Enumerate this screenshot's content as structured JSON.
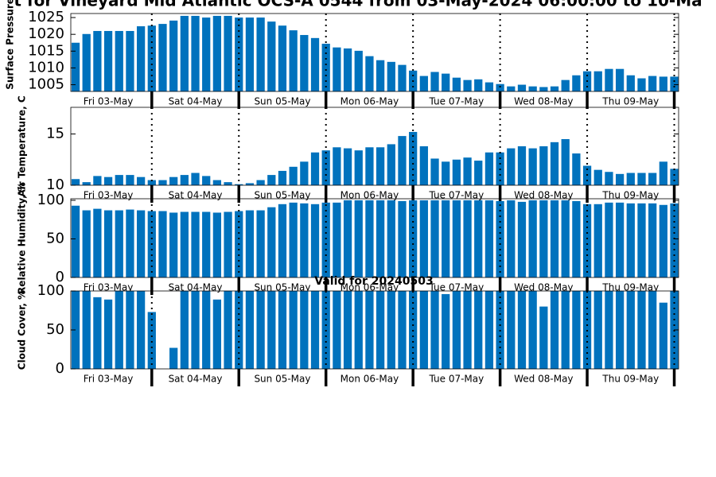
{
  "chart_data": [
    {
      "type": "bar",
      "title": "t for Vineyard Mid Atlantic OCS-A 0544 from 03-May-2024 06:00:00 to 10-Ma",
      "ylabel": "Surface Pressure, mb",
      "color": "#0072bd",
      "x": [
        3.125,
        3.25,
        3.375,
        3.5,
        3.625,
        3.75,
        3.875,
        4,
        4.125,
        4.25,
        4.375,
        4.5,
        4.625,
        4.75,
        4.875,
        5,
        5.125,
        5.25,
        5.375,
        5.5,
        5.625,
        5.75,
        5.875,
        6,
        6.125,
        6.25,
        6.375,
        6.5,
        6.625,
        6.75,
        6.875,
        7,
        7.125,
        7.25,
        7.375,
        7.5,
        7.625,
        7.75,
        7.875,
        8,
        8.125,
        8.25,
        8.375,
        8.5,
        8.625,
        8.75,
        8.875,
        9,
        9.125,
        9.25,
        9.375,
        9.5,
        9.625,
        9.75,
        9.875,
        10
      ],
      "values": [
        1017.5,
        1020.1,
        1021,
        1021,
        1021,
        1021,
        1022.4,
        1022.6,
        1023.1,
        1024.1,
        1025.5,
        1025.5,
        1025,
        1025.5,
        1025.5,
        1025,
        1025,
        1025,
        1023.8,
        1022.6,
        1021.2,
        1019.8,
        1018.9,
        1017.2,
        1016.1,
        1015.8,
        1015.1,
        1013.5,
        1012.3,
        1011.8,
        1010.9,
        1009.2,
        1007.6,
        1008.8,
        1008.3,
        1007.1,
        1006.4,
        1006.6,
        1005.7,
        1005.2,
        1004.5,
        1005,
        1004.5,
        1004.3,
        1004.5,
        1006.4,
        1007.8,
        1009,
        1009,
        1009.7,
        1009.7,
        1007.8,
        1006.9,
        1007.6,
        1007.4,
        1007.4
      ],
      "xlim": [
        3.07,
        10.05
      ],
      "ylim": [
        1003,
        1026.2
      ],
      "yticks": [
        1005,
        1010,
        1015,
        1020,
        1025
      ],
      "xticks": [
        {
          "value": 3.5,
          "label": "Fri 03-May"
        },
        {
          "value": 4.5,
          "label": "Sat 04-May"
        },
        {
          "value": 5.5,
          "label": "Sun 05-May"
        },
        {
          "value": 6.5,
          "label": "Mon 06-May"
        },
        {
          "value": 7.5,
          "label": "Tue 07-May"
        },
        {
          "value": 8.5,
          "label": "Wed 08-May"
        },
        {
          "value": 9.5,
          "label": "Thu 09-May"
        }
      ],
      "day_boundaries": [
        4,
        5,
        6,
        7,
        8,
        9,
        10
      ]
    },
    {
      "type": "bar",
      "ylabel": "Air Temperature, C",
      "color": "#0072bd",
      "x": [
        3.125,
        3.25,
        3.375,
        3.5,
        3.625,
        3.75,
        3.875,
        4,
        4.125,
        4.25,
        4.375,
        4.5,
        4.625,
        4.75,
        4.875,
        5,
        5.125,
        5.25,
        5.375,
        5.5,
        5.625,
        5.75,
        5.875,
        6,
        6.125,
        6.25,
        6.375,
        6.5,
        6.625,
        6.75,
        6.875,
        7,
        7.125,
        7.25,
        7.375,
        7.5,
        7.625,
        7.75,
        7.875,
        8,
        8.125,
        8.25,
        8.375,
        8.5,
        8.625,
        8.75,
        8.875,
        9,
        9.125,
        9.25,
        9.375,
        9.5,
        9.625,
        9.75,
        9.875,
        10
      ],
      "values": [
        10.6,
        10.3,
        10.9,
        10.8,
        11,
        11,
        10.8,
        10.5,
        10.5,
        10.8,
        11,
        11.2,
        10.9,
        10.5,
        10.3,
        10.1,
        10.2,
        10.5,
        11,
        11.4,
        11.8,
        12.3,
        13.2,
        13.4,
        13.7,
        13.6,
        13.4,
        13.7,
        13.7,
        14,
        14.8,
        15.2,
        13.8,
        12.6,
        12.3,
        12.5,
        12.7,
        12.4,
        13.2,
        13.2,
        13.6,
        13.8,
        13.6,
        13.8,
        14.2,
        14.5,
        13.1,
        11.9,
        11.5,
        11.3,
        11.1,
        11.2,
        11.2,
        11.2,
        12.3,
        11.6
      ],
      "xlim": [
        3.07,
        10.05
      ],
      "ylim": [
        10,
        17.6
      ],
      "yticks": [
        10,
        15
      ],
      "xticks": [
        {
          "value": 3.5,
          "label": "Fri 03-May"
        },
        {
          "value": 4.5,
          "label": "Sat 04-May"
        },
        {
          "value": 5.5,
          "label": "Sun 05-May"
        },
        {
          "value": 6.5,
          "label": "Mon 06-May"
        },
        {
          "value": 7.5,
          "label": "Tue 07-May"
        },
        {
          "value": 8.5,
          "label": "Wed 08-May"
        },
        {
          "value": 9.5,
          "label": "Thu 09-May"
        }
      ],
      "day_boundaries": [
        4,
        5,
        6,
        7,
        8,
        9,
        10
      ]
    },
    {
      "type": "bar",
      "ylabel": "Relative Humidity, %",
      "color": "#0072bd",
      "x": [
        3.125,
        3.25,
        3.375,
        3.5,
        3.625,
        3.75,
        3.875,
        4,
        4.125,
        4.25,
        4.375,
        4.5,
        4.625,
        4.75,
        4.875,
        5,
        5.125,
        5.25,
        5.375,
        5.5,
        5.625,
        5.75,
        5.875,
        6,
        6.125,
        6.25,
        6.375,
        6.5,
        6.625,
        6.75,
        6.875,
        7,
        7.125,
        7.25,
        7.375,
        7.5,
        7.625,
        7.75,
        7.875,
        8,
        8.125,
        8.25,
        8.375,
        8.5,
        8.625,
        8.75,
        8.875,
        9,
        9.125,
        9.25,
        9.375,
        9.5,
        9.625,
        9.75,
        9.875,
        10
      ],
      "values": [
        93,
        87,
        89,
        87,
        87,
        88,
        87,
        86,
        86,
        84,
        85,
        85,
        85,
        84,
        85,
        86,
        87,
        87,
        91,
        95,
        97,
        96,
        95,
        97,
        97,
        100,
        100,
        100,
        100,
        100,
        99,
        100,
        100,
        100,
        100,
        100,
        100,
        100,
        100,
        99,
        100,
        98,
        100,
        100,
        100,
        100,
        99,
        95,
        95,
        97,
        97,
        96,
        96,
        96,
        94,
        96
      ],
      "xlim": [
        3.07,
        10.05
      ],
      "ylim": [
        0,
        102
      ],
      "yticks": [
        0,
        50,
        100
      ],
      "xticks": [
        {
          "value": 3.5,
          "label": "Fri 03-May"
        },
        {
          "value": 4.5,
          "label": "Sat 04-May"
        },
        {
          "value": 5.5,
          "label": "Sun 05-May"
        },
        {
          "value": 6.5,
          "label": "Mon 06-May"
        },
        {
          "value": 7.5,
          "label": "Tue 07-May"
        },
        {
          "value": 8.5,
          "label": "Wed 08-May"
        },
        {
          "value": 9.5,
          "label": "Thu 09-May"
        }
      ],
      "day_boundaries": [
        4,
        5,
        6,
        7,
        8,
        9,
        10
      ]
    },
    {
      "type": "bar",
      "title": "Valid for 20240503",
      "ylabel": "Cloud Cover, %",
      "color": "#0072bd",
      "x": [
        3.125,
        3.25,
        3.375,
        3.5,
        3.625,
        3.75,
        3.875,
        4,
        4.125,
        4.25,
        4.375,
        4.5,
        4.625,
        4.75,
        4.875,
        5,
        5.125,
        5.25,
        5.375,
        5.5,
        5.625,
        5.75,
        5.875,
        6,
        6.125,
        6.25,
        6.375,
        6.5,
        6.625,
        6.75,
        6.875,
        7,
        7.125,
        7.25,
        7.375,
        7.5,
        7.625,
        7.75,
        7.875,
        8,
        8.125,
        8.25,
        8.375,
        8.5,
        8.625,
        8.75,
        8.875,
        9,
        9.125,
        9.25,
        9.375,
        9.5,
        9.625,
        9.75,
        9.875,
        10
      ],
      "values": [
        100,
        100,
        92,
        89,
        100,
        100,
        100,
        73,
        0,
        27,
        100,
        100,
        100,
        89,
        100,
        100,
        100,
        100,
        100,
        100,
        100,
        100,
        100,
        100,
        100,
        100,
        100,
        100,
        100,
        100,
        100,
        100,
        100,
        100,
        96,
        100,
        100,
        100,
        100,
        100,
        100,
        100,
        100,
        80,
        100,
        100,
        100,
        100,
        100,
        100,
        100,
        100,
        100,
        100,
        85,
        100
      ],
      "xlim": [
        3.07,
        10.05
      ],
      "ylim": [
        0,
        100
      ],
      "yticks": [
        0,
        50,
        100
      ],
      "xticks": [
        {
          "value": 3.5,
          "label": "Fri 03-May"
        },
        {
          "value": 4.5,
          "label": "Sat 04-May"
        },
        {
          "value": 5.5,
          "label": "Sun 05-May"
        },
        {
          "value": 6.5,
          "label": "Mon 06-May"
        },
        {
          "value": 7.5,
          "label": "Tue 07-May"
        },
        {
          "value": 8.5,
          "label": "Wed 08-May"
        },
        {
          "value": 9.5,
          "label": "Thu 09-May"
        }
      ],
      "day_boundaries": [
        4,
        5,
        6,
        7,
        8,
        9,
        10
      ]
    }
  ]
}
